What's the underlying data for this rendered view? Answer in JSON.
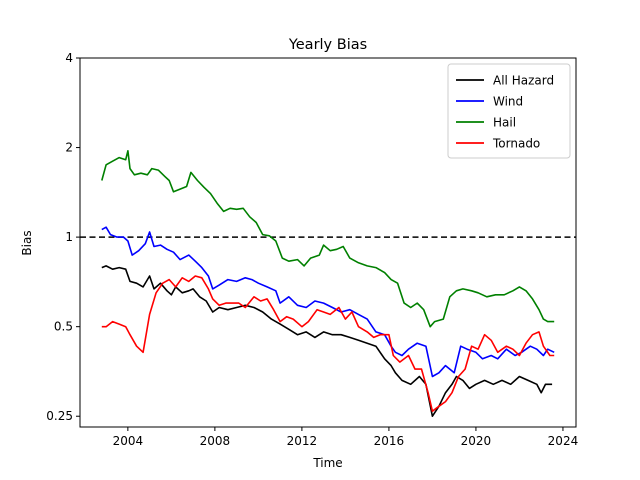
{
  "chart_data": {
    "type": "line",
    "title": "Yearly Bias",
    "xlabel": "Time",
    "ylabel": "Bias",
    "yscale": "log2",
    "xlim": [
      2001.8,
      2024.6
    ],
    "ylim": [
      0.23,
      4
    ],
    "xticks": [
      2004,
      2008,
      2012,
      2016,
      2020,
      2024
    ],
    "yticks": [
      {
        "value": 0.25,
        "label": "0.25"
      },
      {
        "value": 0.5,
        "label": "0.5"
      },
      {
        "value": 1,
        "label": "1"
      },
      {
        "value": 2,
        "label": "2"
      },
      {
        "value": 4,
        "label": "4"
      }
    ],
    "reference_line": {
      "value": 1,
      "style": "dashed",
      "color": "#000000"
    },
    "grid": false,
    "legend_position": "top-right",
    "series": [
      {
        "name": "All Hazard",
        "color": "#000000",
        "points": [
          [
            2002.8,
            0.79
          ],
          [
            2003.0,
            0.8
          ],
          [
            2003.3,
            0.78
          ],
          [
            2003.6,
            0.79
          ],
          [
            2003.9,
            0.78
          ],
          [
            2004.1,
            0.71
          ],
          [
            2004.4,
            0.7
          ],
          [
            2004.7,
            0.68
          ],
          [
            2005.0,
            0.74
          ],
          [
            2005.2,
            0.67
          ],
          [
            2005.5,
            0.7
          ],
          [
            2005.8,
            0.66
          ],
          [
            2006.0,
            0.64
          ],
          [
            2006.2,
            0.68
          ],
          [
            2006.5,
            0.65
          ],
          [
            2006.8,
            0.66
          ],
          [
            2007.0,
            0.67
          ],
          [
            2007.3,
            0.63
          ],
          [
            2007.6,
            0.61
          ],
          [
            2007.9,
            0.56
          ],
          [
            2008.2,
            0.58
          ],
          [
            2008.6,
            0.57
          ],
          [
            2009.0,
            0.58
          ],
          [
            2009.4,
            0.59
          ],
          [
            2009.8,
            0.58
          ],
          [
            2010.2,
            0.56
          ],
          [
            2010.6,
            0.53
          ],
          [
            2011.0,
            0.51
          ],
          [
            2011.4,
            0.49
          ],
          [
            2011.8,
            0.47
          ],
          [
            2012.2,
            0.48
          ],
          [
            2012.6,
            0.46
          ],
          [
            2013.0,
            0.48
          ],
          [
            2013.4,
            0.47
          ],
          [
            2013.8,
            0.47
          ],
          [
            2014.2,
            0.46
          ],
          [
            2014.6,
            0.45
          ],
          [
            2015.0,
            0.44
          ],
          [
            2015.4,
            0.43
          ],
          [
            2015.8,
            0.39
          ],
          [
            2016.1,
            0.37
          ],
          [
            2016.3,
            0.35
          ],
          [
            2016.6,
            0.33
          ],
          [
            2017.0,
            0.32
          ],
          [
            2017.4,
            0.34
          ],
          [
            2017.7,
            0.32
          ],
          [
            2018.0,
            0.25
          ],
          [
            2018.3,
            0.27
          ],
          [
            2018.6,
            0.3
          ],
          [
            2018.9,
            0.32
          ],
          [
            2019.1,
            0.34
          ],
          [
            2019.4,
            0.33
          ],
          [
            2019.7,
            0.31
          ],
          [
            2020.0,
            0.32
          ],
          [
            2020.4,
            0.33
          ],
          [
            2020.8,
            0.32
          ],
          [
            2021.2,
            0.33
          ],
          [
            2021.6,
            0.32
          ],
          [
            2022.0,
            0.34
          ],
          [
            2022.4,
            0.33
          ],
          [
            2022.8,
            0.32
          ],
          [
            2023.0,
            0.3
          ],
          [
            2023.2,
            0.32
          ],
          [
            2023.5,
            0.32
          ]
        ]
      },
      {
        "name": "Wind",
        "color": "#0000ff",
        "points": [
          [
            2002.8,
            1.06
          ],
          [
            2003.0,
            1.08
          ],
          [
            2003.2,
            1.02
          ],
          [
            2003.5,
            1.0
          ],
          [
            2003.8,
            1.0
          ],
          [
            2004.0,
            0.97
          ],
          [
            2004.2,
            0.87
          ],
          [
            2004.5,
            0.9
          ],
          [
            2004.8,
            0.95
          ],
          [
            2005.0,
            1.04
          ],
          [
            2005.2,
            0.93
          ],
          [
            2005.5,
            0.94
          ],
          [
            2005.8,
            0.91
          ],
          [
            2006.1,
            0.89
          ],
          [
            2006.4,
            0.84
          ],
          [
            2006.8,
            0.87
          ],
          [
            2007.1,
            0.83
          ],
          [
            2007.4,
            0.79
          ],
          [
            2007.7,
            0.74
          ],
          [
            2007.9,
            0.67
          ],
          [
            2008.2,
            0.69
          ],
          [
            2008.6,
            0.72
          ],
          [
            2009.0,
            0.71
          ],
          [
            2009.4,
            0.73
          ],
          [
            2009.7,
            0.72
          ],
          [
            2010.0,
            0.7
          ],
          [
            2010.4,
            0.68
          ],
          [
            2010.8,
            0.66
          ],
          [
            2011.0,
            0.6
          ],
          [
            2011.4,
            0.63
          ],
          [
            2011.8,
            0.59
          ],
          [
            2012.2,
            0.58
          ],
          [
            2012.6,
            0.61
          ],
          [
            2013.0,
            0.6
          ],
          [
            2013.4,
            0.58
          ],
          [
            2013.8,
            0.56
          ],
          [
            2014.2,
            0.57
          ],
          [
            2014.6,
            0.55
          ],
          [
            2015.0,
            0.53
          ],
          [
            2015.4,
            0.48
          ],
          [
            2015.8,
            0.47
          ],
          [
            2016.1,
            0.43
          ],
          [
            2016.3,
            0.41
          ],
          [
            2016.6,
            0.4
          ],
          [
            2016.9,
            0.42
          ],
          [
            2017.3,
            0.44
          ],
          [
            2017.7,
            0.43
          ],
          [
            2018.0,
            0.34
          ],
          [
            2018.3,
            0.35
          ],
          [
            2018.6,
            0.37
          ],
          [
            2019.0,
            0.35
          ],
          [
            2019.3,
            0.43
          ],
          [
            2019.6,
            0.42
          ],
          [
            2020.0,
            0.41
          ],
          [
            2020.3,
            0.39
          ],
          [
            2020.7,
            0.4
          ],
          [
            2021.0,
            0.39
          ],
          [
            2021.4,
            0.42
          ],
          [
            2021.8,
            0.4
          ],
          [
            2022.1,
            0.41
          ],
          [
            2022.5,
            0.43
          ],
          [
            2022.8,
            0.42
          ],
          [
            2023.1,
            0.4
          ],
          [
            2023.3,
            0.42
          ],
          [
            2023.6,
            0.41
          ]
        ]
      },
      {
        "name": "Hail",
        "color": "#008000",
        "points": [
          [
            2002.8,
            1.55
          ],
          [
            2003.0,
            1.75
          ],
          [
            2003.3,
            1.8
          ],
          [
            2003.6,
            1.85
          ],
          [
            2003.9,
            1.82
          ],
          [
            2004.0,
            1.95
          ],
          [
            2004.1,
            1.7
          ],
          [
            2004.3,
            1.62
          ],
          [
            2004.6,
            1.64
          ],
          [
            2004.9,
            1.62
          ],
          [
            2005.1,
            1.7
          ],
          [
            2005.4,
            1.68
          ],
          [
            2005.7,
            1.6
          ],
          [
            2005.9,
            1.55
          ],
          [
            2006.1,
            1.42
          ],
          [
            2006.4,
            1.45
          ],
          [
            2006.7,
            1.48
          ],
          [
            2006.9,
            1.65
          ],
          [
            2007.2,
            1.55
          ],
          [
            2007.5,
            1.47
          ],
          [
            2007.8,
            1.4
          ],
          [
            2008.1,
            1.3
          ],
          [
            2008.4,
            1.22
          ],
          [
            2008.7,
            1.25
          ],
          [
            2009.0,
            1.24
          ],
          [
            2009.3,
            1.25
          ],
          [
            2009.6,
            1.17
          ],
          [
            2009.9,
            1.12
          ],
          [
            2010.2,
            1.02
          ],
          [
            2010.5,
            1.01
          ],
          [
            2010.8,
            0.97
          ],
          [
            2011.1,
            0.85
          ],
          [
            2011.4,
            0.83
          ],
          [
            2011.8,
            0.84
          ],
          [
            2012.1,
            0.8
          ],
          [
            2012.4,
            0.85
          ],
          [
            2012.8,
            0.87
          ],
          [
            2013.0,
            0.94
          ],
          [
            2013.3,
            0.9
          ],
          [
            2013.6,
            0.91
          ],
          [
            2013.9,
            0.93
          ],
          [
            2014.2,
            0.85
          ],
          [
            2014.6,
            0.82
          ],
          [
            2015.0,
            0.8
          ],
          [
            2015.4,
            0.79
          ],
          [
            2015.8,
            0.76
          ],
          [
            2016.1,
            0.72
          ],
          [
            2016.4,
            0.7
          ],
          [
            2016.7,
            0.6
          ],
          [
            2017.0,
            0.58
          ],
          [
            2017.3,
            0.6
          ],
          [
            2017.6,
            0.57
          ],
          [
            2017.9,
            0.5
          ],
          [
            2018.1,
            0.52
          ],
          [
            2018.5,
            0.53
          ],
          [
            2018.8,
            0.63
          ],
          [
            2019.1,
            0.66
          ],
          [
            2019.4,
            0.67
          ],
          [
            2019.8,
            0.66
          ],
          [
            2020.1,
            0.65
          ],
          [
            2020.5,
            0.63
          ],
          [
            2020.9,
            0.64
          ],
          [
            2021.3,
            0.64
          ],
          [
            2021.7,
            0.66
          ],
          [
            2022.0,
            0.68
          ],
          [
            2022.3,
            0.66
          ],
          [
            2022.6,
            0.62
          ],
          [
            2022.9,
            0.57
          ],
          [
            2023.1,
            0.53
          ],
          [
            2023.3,
            0.52
          ],
          [
            2023.6,
            0.52
          ]
        ]
      },
      {
        "name": "Tornado",
        "color": "#ff0000",
        "points": [
          [
            2002.8,
            0.5
          ],
          [
            2003.0,
            0.5
          ],
          [
            2003.3,
            0.52
          ],
          [
            2003.6,
            0.51
          ],
          [
            2003.9,
            0.5
          ],
          [
            2004.1,
            0.47
          ],
          [
            2004.4,
            0.43
          ],
          [
            2004.7,
            0.41
          ],
          [
            2005.0,
            0.55
          ],
          [
            2005.3,
            0.65
          ],
          [
            2005.6,
            0.7
          ],
          [
            2005.9,
            0.72
          ],
          [
            2006.2,
            0.68
          ],
          [
            2006.5,
            0.73
          ],
          [
            2006.8,
            0.71
          ],
          [
            2007.1,
            0.74
          ],
          [
            2007.4,
            0.73
          ],
          [
            2007.7,
            0.67
          ],
          [
            2007.9,
            0.62
          ],
          [
            2008.2,
            0.59
          ],
          [
            2008.5,
            0.6
          ],
          [
            2008.8,
            0.6
          ],
          [
            2009.1,
            0.6
          ],
          [
            2009.4,
            0.58
          ],
          [
            2009.8,
            0.63
          ],
          [
            2010.1,
            0.61
          ],
          [
            2010.4,
            0.62
          ],
          [
            2010.7,
            0.57
          ],
          [
            2011.0,
            0.52
          ],
          [
            2011.3,
            0.54
          ],
          [
            2011.6,
            0.53
          ],
          [
            2012.0,
            0.5
          ],
          [
            2012.3,
            0.52
          ],
          [
            2012.7,
            0.57
          ],
          [
            2013.0,
            0.56
          ],
          [
            2013.3,
            0.55
          ],
          [
            2013.7,
            0.58
          ],
          [
            2014.0,
            0.53
          ],
          [
            2014.3,
            0.56
          ],
          [
            2014.6,
            0.5
          ],
          [
            2015.0,
            0.48
          ],
          [
            2015.3,
            0.46
          ],
          [
            2015.6,
            0.47
          ],
          [
            2016.0,
            0.47
          ],
          [
            2016.2,
            0.4
          ],
          [
            2016.5,
            0.38
          ],
          [
            2016.9,
            0.4
          ],
          [
            2017.2,
            0.36
          ],
          [
            2017.5,
            0.36
          ],
          [
            2017.8,
            0.3
          ],
          [
            2018.0,
            0.26
          ],
          [
            2018.3,
            0.27
          ],
          [
            2018.6,
            0.28
          ],
          [
            2018.9,
            0.3
          ],
          [
            2019.2,
            0.34
          ],
          [
            2019.5,
            0.36
          ],
          [
            2019.8,
            0.43
          ],
          [
            2020.1,
            0.42
          ],
          [
            2020.4,
            0.47
          ],
          [
            2020.7,
            0.45
          ],
          [
            2021.0,
            0.41
          ],
          [
            2021.4,
            0.43
          ],
          [
            2021.7,
            0.42
          ],
          [
            2022.0,
            0.4
          ],
          [
            2022.3,
            0.44
          ],
          [
            2022.6,
            0.47
          ],
          [
            2022.9,
            0.48
          ],
          [
            2023.1,
            0.43
          ],
          [
            2023.4,
            0.4
          ],
          [
            2023.6,
            0.4
          ]
        ]
      }
    ]
  }
}
